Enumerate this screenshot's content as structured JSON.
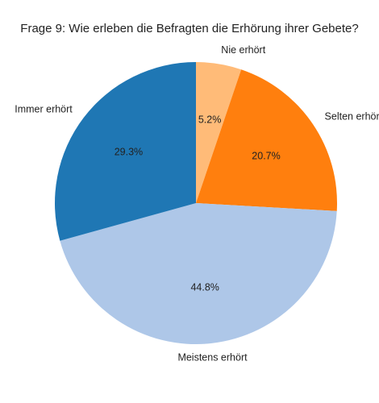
{
  "chart_data": {
    "type": "pie",
    "title": "Frage 9: Wie erleben die Befragten die Erhörung ihrer Gebete?",
    "start_angle_deg": 90,
    "direction": "clockwise",
    "slices": [
      {
        "label": "Nie erhört",
        "value": 5.2,
        "pct_label": "5.2%",
        "color": "#ffbb78"
      },
      {
        "label": "Selten erhört",
        "value": 20.7,
        "pct_label": "20.7%",
        "color": "#ff7f0e"
      },
      {
        "label": "Meistens erhört",
        "value": 44.8,
        "pct_label": "44.8%",
        "color": "#aec7e8"
      },
      {
        "label": "Immer erhört",
        "value": 29.3,
        "pct_label": "29.3%",
        "color": "#1f77b4"
      }
    ]
  }
}
